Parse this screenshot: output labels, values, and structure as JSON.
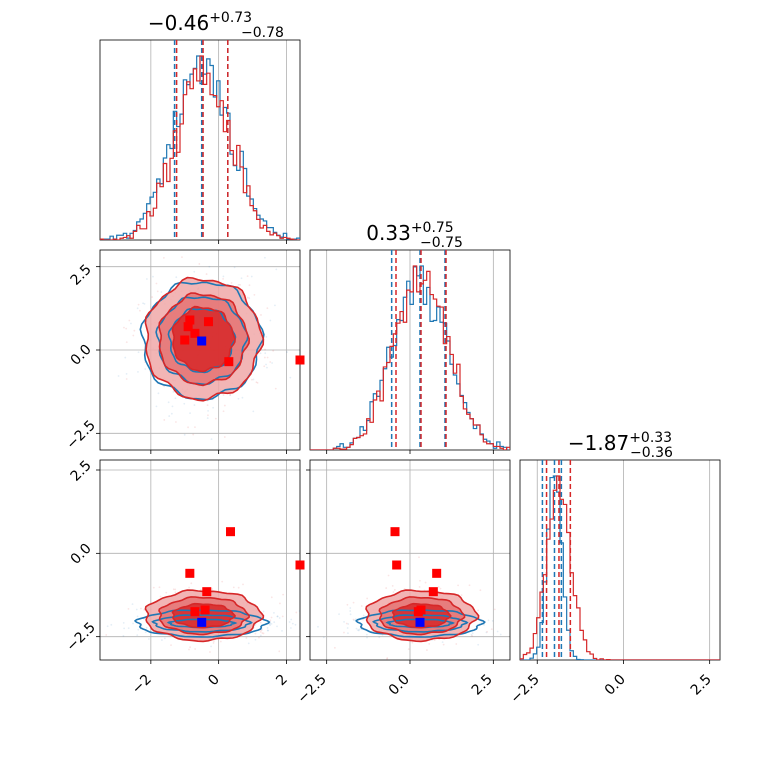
{
  "chart_data": [
    {
      "type": "histogram",
      "panel": "diag-1",
      "title": {
        "main": "−0.46",
        "sup": "+0.73",
        "sub": "−0.78"
      },
      "xlim": [
        -3.5,
        2.4
      ],
      "series": [
        {
          "color": "#1f77b4",
          "mean": -0.5,
          "sd": 0.85,
          "quantiles": [
            -1.3,
            -0.5,
            0.27
          ]
        },
        {
          "color": "#d62728",
          "mean": -0.46,
          "sd": 0.8,
          "quantiles": [
            -1.24,
            -0.46,
            0.27
          ]
        }
      ]
    },
    {
      "type": "histogram",
      "panel": "diag-2",
      "title": {
        "main": "0.33",
        "sup": "+0.75",
        "sub": "−0.75"
      },
      "xlim": [
        -3.0,
        3.0
      ],
      "series": [
        {
          "color": "#1f77b4",
          "mean": 0.3,
          "sd": 0.85,
          "quantiles": [
            -0.55,
            0.3,
            1.05
          ]
        },
        {
          "color": "#d62728",
          "mean": 0.33,
          "sd": 0.8,
          "quantiles": [
            -0.42,
            0.33,
            1.08
          ]
        }
      ]
    },
    {
      "type": "histogram",
      "panel": "diag-3",
      "title": {
        "main": "−1.87",
        "sup": "+0.33",
        "sub": "−0.36"
      },
      "xlim": [
        -3.0,
        2.8
      ],
      "series": [
        {
          "color": "#1f77b4",
          "mean": -2.0,
          "sd": 0.2,
          "quantiles": [
            -2.35,
            -2.0,
            -1.8
          ]
        },
        {
          "color": "#d62728",
          "mean": -1.87,
          "sd": 0.35,
          "quantiles": [
            -2.23,
            -1.87,
            -1.54
          ]
        }
      ]
    },
    {
      "type": "scatter",
      "panel": "p21",
      "xlim": [
        -3.5,
        2.4
      ],
      "ylim": [
        -3.0,
        3.0
      ],
      "contours": [
        {
          "color": "#1f77b4",
          "cx": -0.5,
          "cy": 0.3,
          "rx": [
            0.95,
            1.3,
            1.75
          ],
          "ry": [
            0.95,
            1.3,
            1.75
          ]
        },
        {
          "color": "#d62728",
          "cx": -0.46,
          "cy": 0.33,
          "rx": [
            0.9,
            1.3,
            1.7
          ],
          "ry": [
            0.95,
            1.35,
            1.8
          ]
        }
      ],
      "red_points": [
        [
          -0.85,
          0.9
        ],
        [
          -0.3,
          0.85
        ],
        [
          -0.9,
          0.7
        ],
        [
          -1.0,
          0.3
        ],
        [
          -0.7,
          0.5
        ],
        [
          0.3,
          -0.35
        ],
        [
          2.4,
          -0.3
        ]
      ],
      "blue_points": [
        [
          -0.5,
          0.27
        ]
      ]
    },
    {
      "type": "scatter",
      "panel": "p31",
      "xlim": [
        -3.5,
        2.4
      ],
      "ylim": [
        -3.2,
        2.8
      ],
      "contours": [
        {
          "color": "#1f77b4",
          "cx": -0.5,
          "cy": -2.1,
          "rx": [
            0.95,
            1.4,
            1.9
          ],
          "ry": [
            0.12,
            0.25,
            0.4
          ]
        },
        {
          "color": "#d62728",
          "cx": -0.46,
          "cy": -1.87,
          "rx": [
            0.9,
            1.3,
            1.7
          ],
          "ry": [
            0.35,
            0.55,
            0.75
          ]
        }
      ],
      "red_points": [
        [
          0.35,
          0.65
        ],
        [
          -0.85,
          -0.6
        ],
        [
          -0.35,
          -1.15
        ],
        [
          -0.7,
          -1.75
        ],
        [
          -0.4,
          -1.7
        ],
        [
          2.4,
          -0.35
        ]
      ],
      "blue_points": [
        [
          -0.5,
          -2.07
        ]
      ]
    },
    {
      "type": "scatter",
      "panel": "p32",
      "xlim": [
        -3.0,
        3.0
      ],
      "ylim": [
        -3.2,
        2.8
      ],
      "contours": [
        {
          "color": "#1f77b4",
          "cx": 0.3,
          "cy": -2.1,
          "rx": [
            0.95,
            1.35,
            1.85
          ],
          "ry": [
            0.12,
            0.25,
            0.4
          ]
        },
        {
          "color": "#d62728",
          "cx": 0.33,
          "cy": -1.87,
          "rx": [
            0.85,
            1.25,
            1.65
          ],
          "ry": [
            0.35,
            0.55,
            0.75
          ]
        }
      ],
      "red_points": [
        [
          -0.45,
          0.65
        ],
        [
          -0.4,
          -0.35
        ],
        [
          0.8,
          -0.6
        ],
        [
          0.7,
          -1.15
        ],
        [
          0.25,
          -1.75
        ],
        [
          0.33,
          -1.7
        ]
      ],
      "blue_points": [
        [
          0.3,
          -2.07
        ]
      ]
    }
  ],
  "ticks": {
    "x1": [
      "−2",
      "0",
      "2"
    ],
    "x2": [
      "−2.5",
      "0.0",
      "2.5"
    ],
    "x3": [
      "−2.5",
      "0.0",
      "2.5"
    ],
    "y2": [
      "2.5",
      "0.0",
      "−2.5"
    ],
    "y3": [
      "2.5",
      "0.0",
      "−2.5"
    ]
  }
}
